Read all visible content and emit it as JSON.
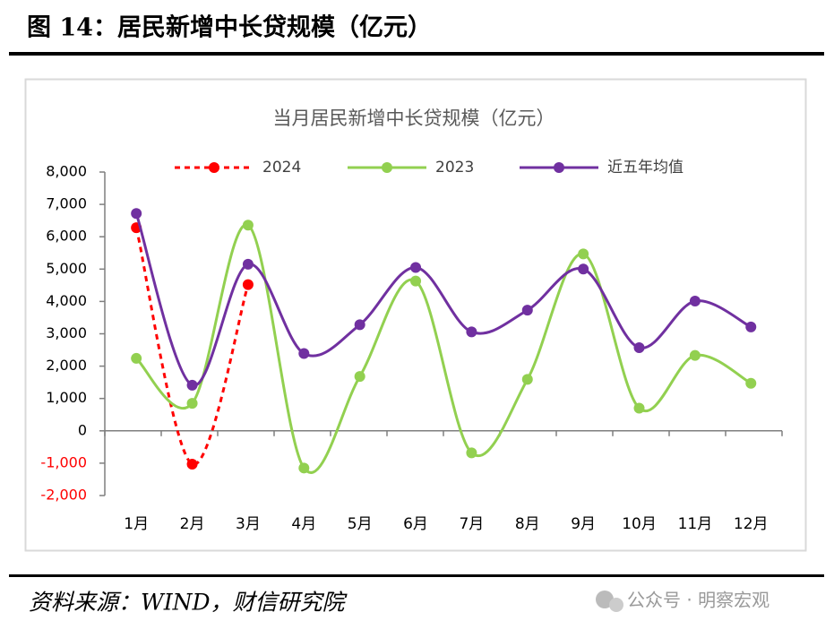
{
  "header": {
    "title": "图 14：居民新增中长贷规模（亿元）"
  },
  "chart_data": {
    "type": "line",
    "title": "当月居民新增中长贷规模（亿元）",
    "categories": [
      "1月",
      "2月",
      "3月",
      "4月",
      "5月",
      "6月",
      "7月",
      "8月",
      "9月",
      "10月",
      "11月",
      "12月"
    ],
    "series": [
      {
        "name": "2024",
        "color": "#ff0000",
        "dashed": true,
        "values": [
          6280,
          -1030,
          4520,
          null,
          null,
          null,
          null,
          null,
          null,
          null,
          null,
          null
        ]
      },
      {
        "name": "2023",
        "color": "#92d050",
        "dashed": false,
        "values": [
          2240,
          850,
          6360,
          -1150,
          1680,
          4630,
          -680,
          1590,
          5470,
          700,
          2330,
          1470
        ]
      },
      {
        "name": "近五年均值",
        "color": "#7030a0",
        "dashed": false,
        "values": [
          6720,
          1410,
          5150,
          2390,
          3280,
          5050,
          3060,
          3730,
          5000,
          2570,
          4010,
          3210
        ]
      }
    ],
    "ylim": [
      -2000,
      8000
    ],
    "yticks": [
      {
        "value": -2000,
        "label": "-2,000"
      },
      {
        "value": -1000,
        "label": "-1,000"
      },
      0,
      {
        "value": 1000,
        "label": "1,000"
      },
      {
        "value": 2000,
        "label": "2,000"
      },
      {
        "value": 3000,
        "label": "3,000"
      },
      {
        "value": 4000,
        "label": "4,000"
      },
      {
        "value": 5000,
        "label": "5,000"
      },
      {
        "value": 6000,
        "label": "6,000"
      },
      {
        "value": 7000,
        "label": "7,000"
      },
      {
        "value": 8000,
        "label": "8,000"
      }
    ],
    "negative_tick_color": "#ff0000",
    "smooth": true,
    "legend": "top",
    "grid": false
  },
  "footer": {
    "source": "资料来源：WIND，财信研究院",
    "watermark": "公众号 · 明察宏观"
  }
}
